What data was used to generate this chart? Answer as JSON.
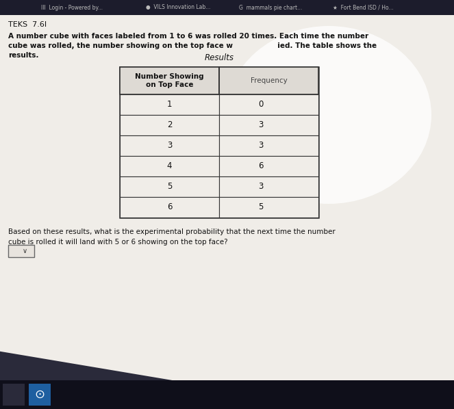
{
  "bg_color": "#2a2a2a",
  "page_bg": "#e8e4de",
  "teks_label": "TEKS  7.6I",
  "intro_text_line1": "A number cube with faces labeled from 1 to 6 was rolle⁠ ⁠⁠⁠⁠⁠⁠⁠⁠⁠⁠⁠⁠⁠⁠⁠⁠⁠⁠⁠⁠⁠ s. Each time the number",
  "intro_line1a": "A number cube with faces labeled from 1 to 6 was rolled 20 times. Each time the number",
  "intro_line2": "cube was rolled, the number showing on the top face w",
  "intro_line2b": "                                    ied. The table shows the",
  "intro_line3": "results.",
  "table_title": "Results",
  "col1_header": "Number Showing\non Top Face",
  "col2_header": "Frequency",
  "numbers": [
    1,
    2,
    3,
    4,
    5,
    6
  ],
  "frequencies": [
    0,
    3,
    3,
    6,
    3,
    5
  ],
  "question_line1": "Based on these results, what is the experimental probability that the next time the number",
  "question_line2": "cube is rolled it will land with 5 or 6 showing on the top face?",
  "table_border_color": "#333333",
  "table_header_bg": "#dedad4",
  "table_cell_bg": "#f0ede8",
  "text_color": "#111111",
  "top_bar_bg": "#1a1a2a",
  "bottom_bar_bg": "#0d0d0d",
  "taskbar_icon1_bg": "#3a3a3a",
  "taskbar_icon2_bg": "#1e5fa0"
}
